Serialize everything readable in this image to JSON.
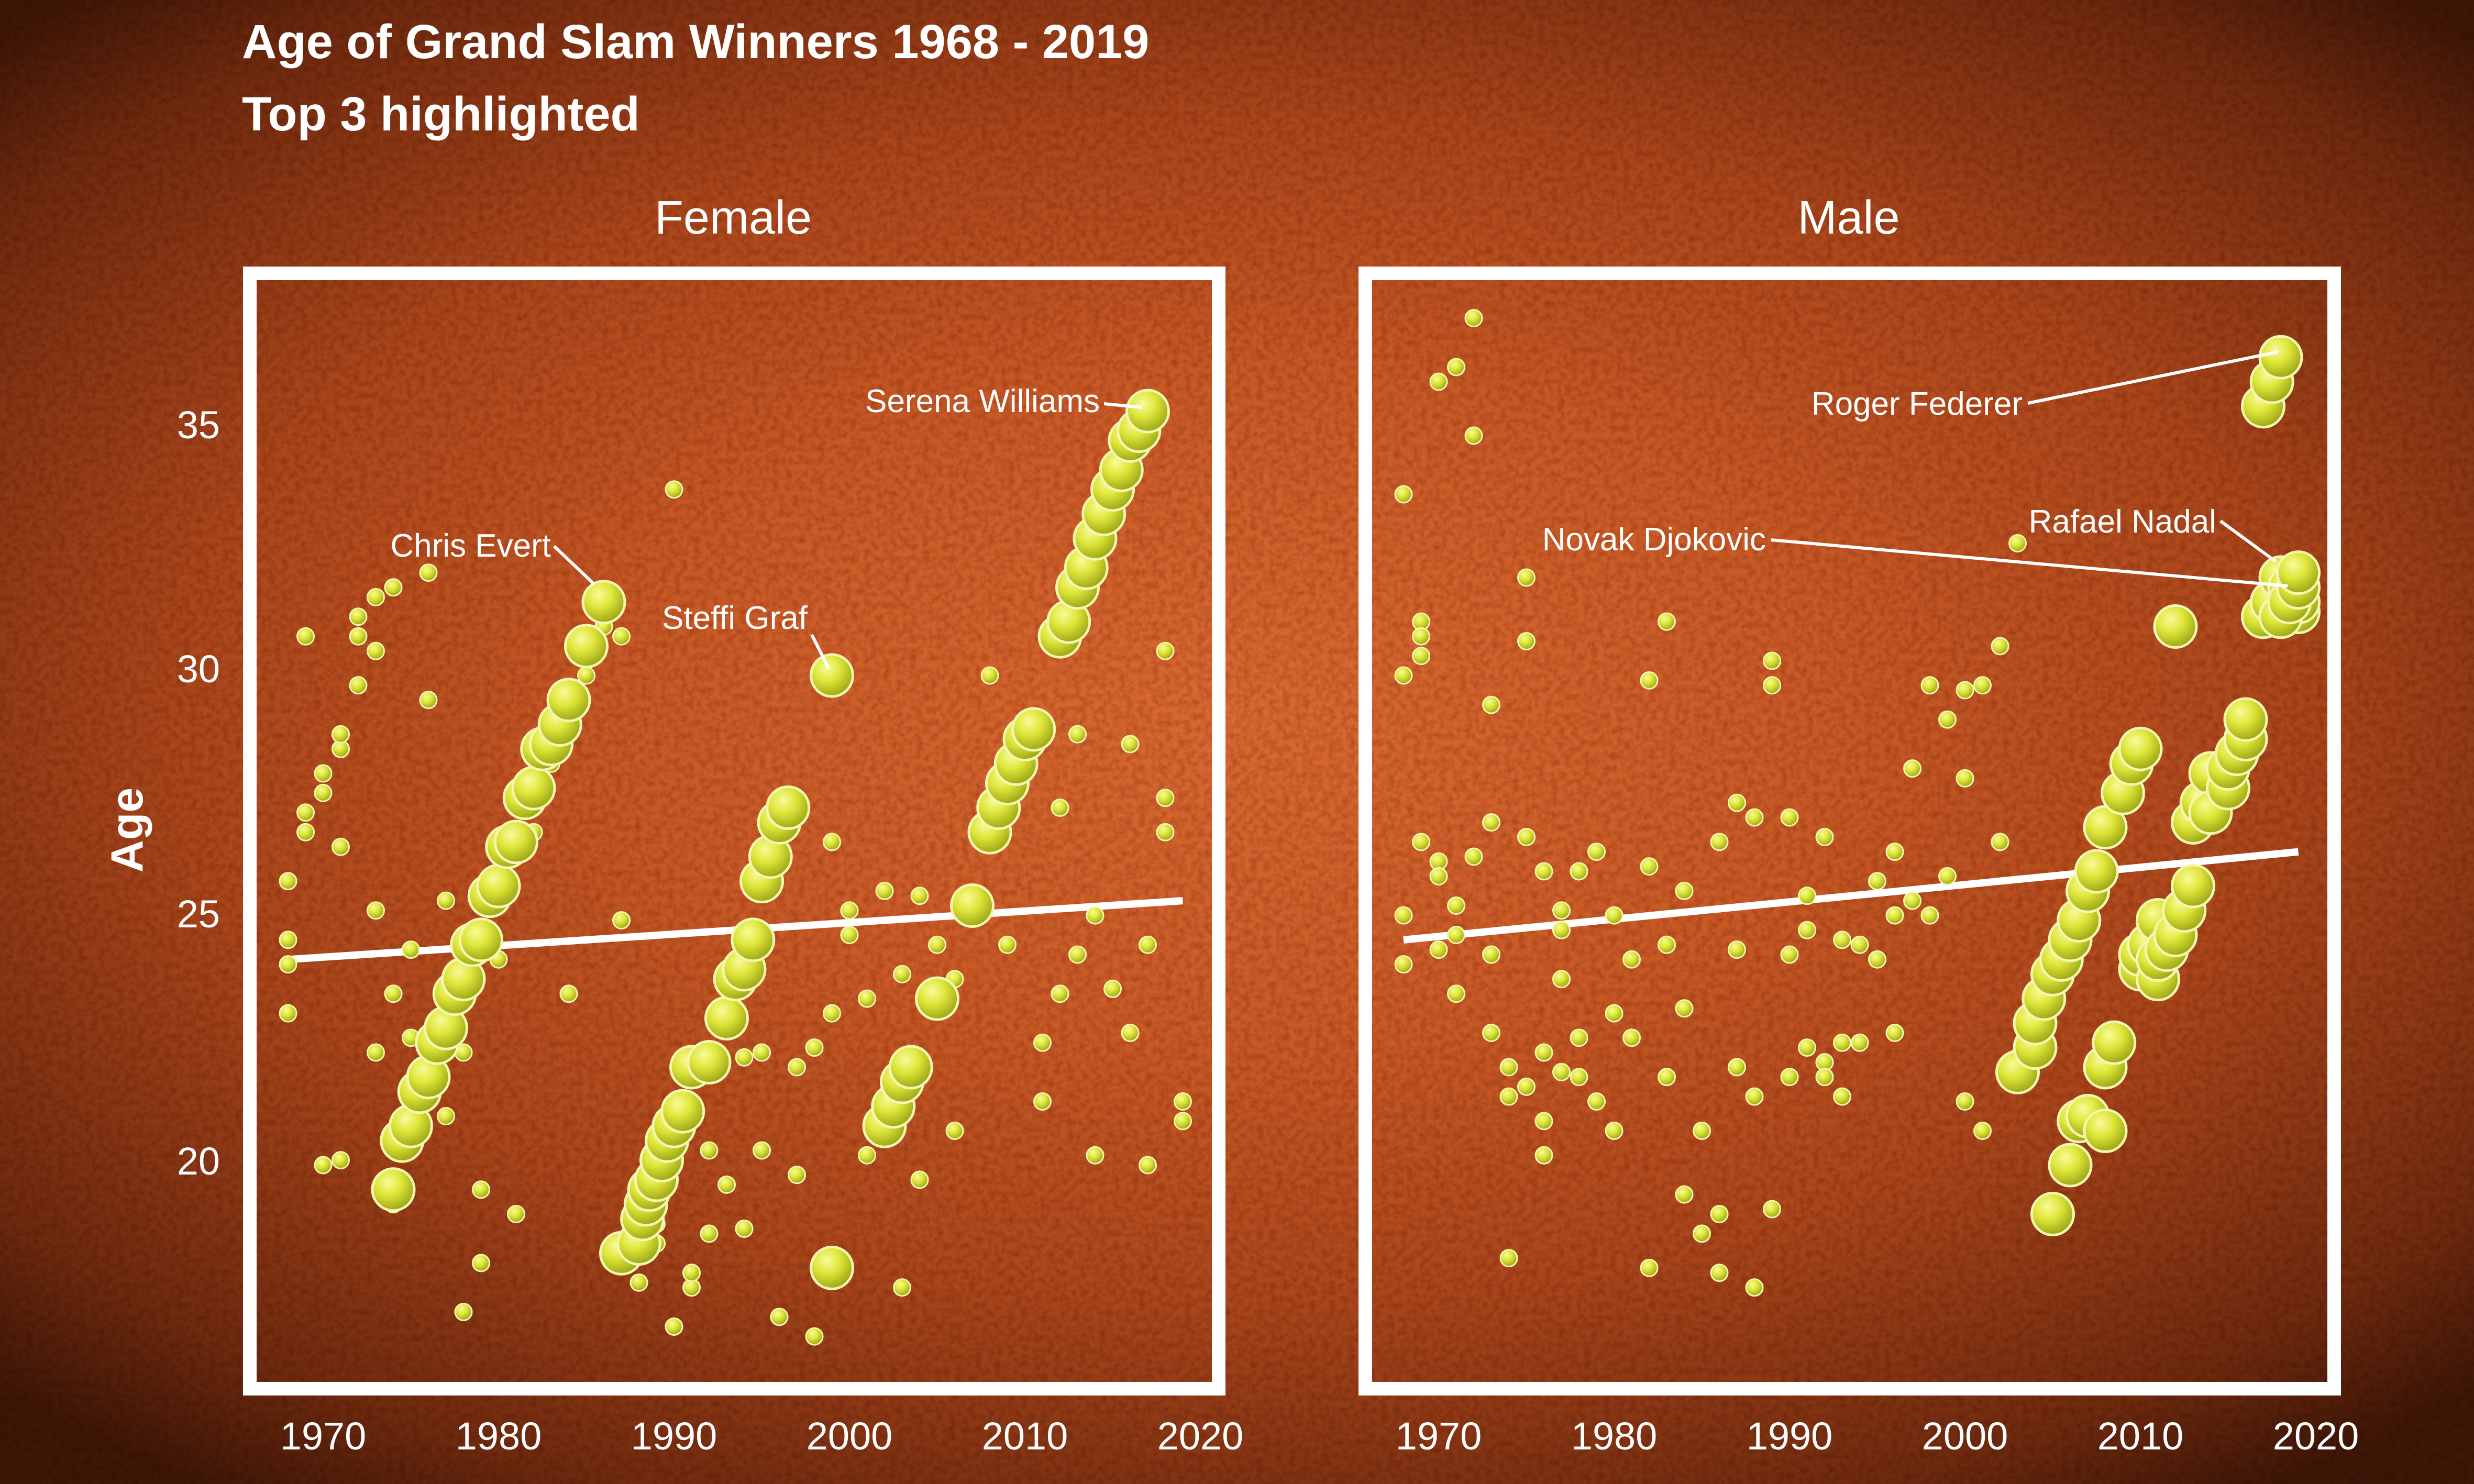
{
  "chart_data": {
    "type": "scatter",
    "title": "Age of Grand Slam Winners 1968 - 2019",
    "subtitle": "Top 3 highlighted",
    "ylabel": "Age",
    "xlabel": "",
    "xlim": [
      1967,
      2022
    ],
    "ylim": [
      16,
      37.5
    ],
    "x_ticks": [
      1970,
      1980,
      1990,
      2000,
      2010,
      2020
    ],
    "y_ticks": [
      20,
      25,
      30,
      35
    ],
    "grid": false,
    "legend": "none",
    "colors": {
      "ball": "#dfe63a",
      "ball_highlight": "#f4f77a",
      "trend": "#ffffff",
      "frame": "#ffffff",
      "text": "#ffffff",
      "court": "#c85a26"
    },
    "panels": [
      {
        "name": "Female",
        "trend": {
          "x": [
            1968,
            2019
          ],
          "y": [
            24.2,
            25.4
          ]
        },
        "highlighted": [
          {
            "name": "Chris Evert",
            "x": [
              1974,
              1974.5,
              1975,
              1975.5,
              1976,
              1976.5,
              1977,
              1977.5,
              1978,
              1978.5,
              1979,
              1979.5,
              1980,
              1980.5,
              1981,
              1981.5,
              1982,
              1982.5,
              1983,
              1983.5,
              1984,
              1985,
              1986
            ],
            "y": [
              19.5,
              20.5,
              20.8,
              21.5,
              21.8,
              22.5,
              22.8,
              23.5,
              23.8,
              24.5,
              24.6,
              25.5,
              25.7,
              26.5,
              26.6,
              27.5,
              27.7,
              28.5,
              28.6,
              29,
              29.5,
              30.6,
              31.5
            ]
          },
          {
            "name": "Steffi Graf",
            "x": [
              1987,
              1988,
              1988.2,
              1988.4,
              1988.6,
              1989,
              1989.3,
              1989.6,
              1990,
              1990.5,
              1991,
              1992,
              1993,
              1993.5,
              1994,
              1994.5,
              1995,
              1995.5,
              1996,
              1996.5,
              1999
            ],
            "y": [
              18.2,
              18.4,
              18.9,
              19.2,
              19.5,
              19.7,
              20.1,
              20.5,
              20.8,
              21.1,
              22,
              22.1,
              23,
              23.8,
              24,
              24.6,
              25.8,
              26.3,
              27,
              27.3,
              30
            ]
          },
          {
            "name": "Serena Williams",
            "x": [
              1999,
              2002,
              2002.5,
              2003,
              2003.5,
              2005,
              2007,
              2008,
              2008.5,
              2009,
              2009.5,
              2010,
              2010.5,
              2012,
              2012.5,
              2013,
              2013.5,
              2014,
              2014.5,
              2015,
              2015.5,
              2016,
              2016.5,
              2017
            ],
            "y": [
              17.9,
              20.8,
              21.2,
              21.7,
              22,
              23.4,
              25.3,
              26.8,
              27.3,
              27.8,
              28.2,
              28.7,
              28.9,
              30.8,
              31.1,
              31.8,
              32.2,
              32.8,
              33.3,
              33.8,
              34.2,
              34.8,
              35,
              35.4
            ]
          }
        ],
        "others": {
          "x": [
            1968,
            1968,
            1968,
            1968,
            1969,
            1969,
            1969,
            1970,
            1970,
            1970,
            1971,
            1971,
            1971,
            1971,
            1972,
            1972,
            1972,
            1973,
            1973,
            1973,
            1973,
            1974,
            1974,
            1974,
            1975,
            1975,
            1976,
            1976,
            1977,
            1977,
            1978,
            1978,
            1979,
            1979,
            1980,
            1981,
            1982,
            1983,
            1984,
            1985,
            1986,
            1987,
            1987,
            1988,
            1989,
            1989,
            1990,
            1990,
            1991,
            1991,
            1992,
            1992,
            1993,
            1993,
            1994,
            1994,
            1995,
            1995,
            1996,
            1997,
            1997,
            1998,
            1998,
            1999,
            1999,
            2000,
            2000,
            2001,
            2001,
            2002,
            2003,
            2003,
            2004,
            2004,
            2005,
            2006,
            2006,
            2007,
            2008,
            2009,
            2010,
            2011,
            2011,
            2012,
            2012,
            2013,
            2013,
            2014,
            2014,
            2015,
            2016,
            2016,
            2017,
            2017,
            2018,
            2018,
            2018,
            2019,
            2019
          ],
          "y": [
            25.8,
            24.6,
            24.1,
            23.1,
            30.8,
            27.2,
            26.8,
            28,
            27.6,
            20,
            28.5,
            28.8,
            26.5,
            20.1,
            31.2,
            30.8,
            29.8,
            31.6,
            30.5,
            25.2,
            22.3,
            31.8,
            23.5,
            19.2,
            24.4,
            22.6,
            29.5,
            32.1,
            25.4,
            21,
            17,
            22.3,
            18,
            19.5,
            24.2,
            19,
            26.8,
            28.2,
            23.5,
            30,
            31,
            25,
            30.8,
            17.6,
            18.8,
            18.4,
            16.7,
            33.8,
            17.5,
            17.8,
            18.6,
            20.3,
            19.6,
            22.8,
            18.7,
            22.2,
            20.3,
            22.3,
            16.9,
            22,
            19.8,
            16.5,
            22.4,
            23.1,
            26.6,
            25.2,
            24.7,
            23.4,
            20.2,
            25.6,
            17.5,
            23.9,
            19.7,
            25.5,
            24.5,
            20.7,
            23.8,
            25.2,
            30,
            24.5,
            28.3,
            21.3,
            22.5,
            27.3,
            23.5,
            24.3,
            28.8,
            20.2,
            25.1,
            23.6,
            28.6,
            22.7,
            24.5,
            20,
            30.5,
            27.5,
            26.8,
            20.9,
            21.3
          ]
        }
      },
      {
        "name": "Male",
        "trend": {
          "x": [
            1968,
            2019
          ],
          "y": [
            24.6,
            26.4
          ]
        },
        "highlighted": [
          {
            "name": "Roger Federer",
            "x": [
              2003,
              2004,
              2004,
              2004.5,
              2005,
              2005.5,
              2006,
              2006.5,
              2007,
              2007.5,
              2008,
              2009,
              2009.5,
              2010,
              2012,
              2017,
              2017.5,
              2018
            ],
            "y": [
              21.9,
              22.4,
              22.9,
              23.4,
              23.9,
              24.2,
              24.6,
              25,
              25.6,
              26,
              26.9,
              27.6,
              28.2,
              28.5,
              31,
              35.5,
              36,
              36.5
            ]
          },
          {
            "name": "Rafael Nadal",
            "x": [
              2005,
              2006,
              2006.5,
              2007,
              2008,
              2008.5,
              2010,
              2010,
              2010.5,
              2011,
              2013,
              2013.5,
              2014,
              2017,
              2017.5,
              2018,
              2018.5,
              2019,
              2019
            ],
            "y": [
              19,
              20,
              20.9,
              21,
              22,
              22.5,
              24,
              24.3,
              24.5,
              25,
              27,
              27.4,
              28,
              31.2,
              31.5,
              32,
              31.8,
              31.3,
              31.5
            ]
          },
          {
            "name": "Novak Djokovic",
            "x": [
              2008,
              2011,
              2011,
              2011.5,
              2012,
              2012.5,
              2013,
              2014,
              2015,
              2015,
              2015.5,
              2016,
              2016,
              2018,
              2018.5,
              2019,
              2019
            ],
            "y": [
              20.7,
              23.8,
              24.2,
              24.4,
              24.7,
              25.2,
              25.7,
              27.2,
              27.7,
              28.1,
              28.4,
              28.7,
              29.1,
              31.2,
              31.5,
              31.8,
              32.1
            ]
          }
        ],
        "others": {
          "x": [
            1968,
            1968,
            1968,
            1968,
            1969,
            1969,
            1969,
            1969,
            1970,
            1970,
            1970,
            1970,
            1971,
            1971,
            1971,
            1971,
            1972,
            1972,
            1972,
            1973,
            1973,
            1973,
            1973,
            1974,
            1974,
            1974,
            1975,
            1975,
            1975,
            1975,
            1976,
            1976,
            1976,
            1976,
            1977,
            1977,
            1977,
            1977,
            1978,
            1978,
            1978,
            1979,
            1979,
            1980,
            1980,
            1980,
            1981,
            1981,
            1982,
            1982,
            1982,
            1983,
            1983,
            1983,
            1984,
            1984,
            1984,
            1985,
            1985,
            1986,
            1986,
            1986,
            1987,
            1987,
            1987,
            1988,
            1988,
            1988,
            1989,
            1989,
            1989,
            1990,
            1990,
            1990,
            1991,
            1991,
            1991,
            1992,
            1992,
            1992,
            1993,
            1993,
            1993,
            1994,
            1994,
            1995,
            1995,
            1996,
            1996,
            1996,
            1997,
            1997,
            1998,
            1998,
            1999,
            1999,
            2000,
            2000,
            2000,
            2001,
            2001,
            2002,
            2002,
            2003,
            2003
          ],
          "y": [
            33.7,
            30,
            25.1,
            24.1,
            31.1,
            30.8,
            30.4,
            26.6,
            36,
            26.2,
            25.9,
            24.4,
            36.3,
            25.3,
            24.7,
            23.5,
            37.3,
            34.9,
            26.3,
            29.4,
            27,
            24.3,
            22.7,
            22,
            21.4,
            18.1,
            32,
            30.7,
            26.7,
            21.6,
            26,
            22.3,
            20.9,
            20.2,
            25.2,
            24.8,
            23.8,
            21.9,
            26,
            22.6,
            21.8,
            26.4,
            21.3,
            25.1,
            23.1,
            20.7,
            24.2,
            22.6,
            29.9,
            26.1,
            17.9,
            31.1,
            24.5,
            21.8,
            25.6,
            23.2,
            19.4,
            20.7,
            18.6,
            26.6,
            19,
            17.8,
            27.4,
            24.4,
            22,
            27.1,
            21.4,
            17.5,
            30.3,
            29.8,
            19.1,
            27.1,
            24.3,
            21.8,
            25.5,
            24.8,
            22.4,
            26.7,
            22.1,
            21.8,
            24.6,
            22.5,
            21.4,
            24.5,
            22.5,
            25.8,
            24.2,
            26.4,
            25.1,
            22.7,
            28.1,
            25.4,
            29.8,
            25.1,
            29.1,
            25.9,
            29.7,
            27.9,
            21.3,
            29.8,
            20.7,
            30.6,
            26.6,
            32.7,
            22.2
          ]
        }
      }
    ]
  }
}
